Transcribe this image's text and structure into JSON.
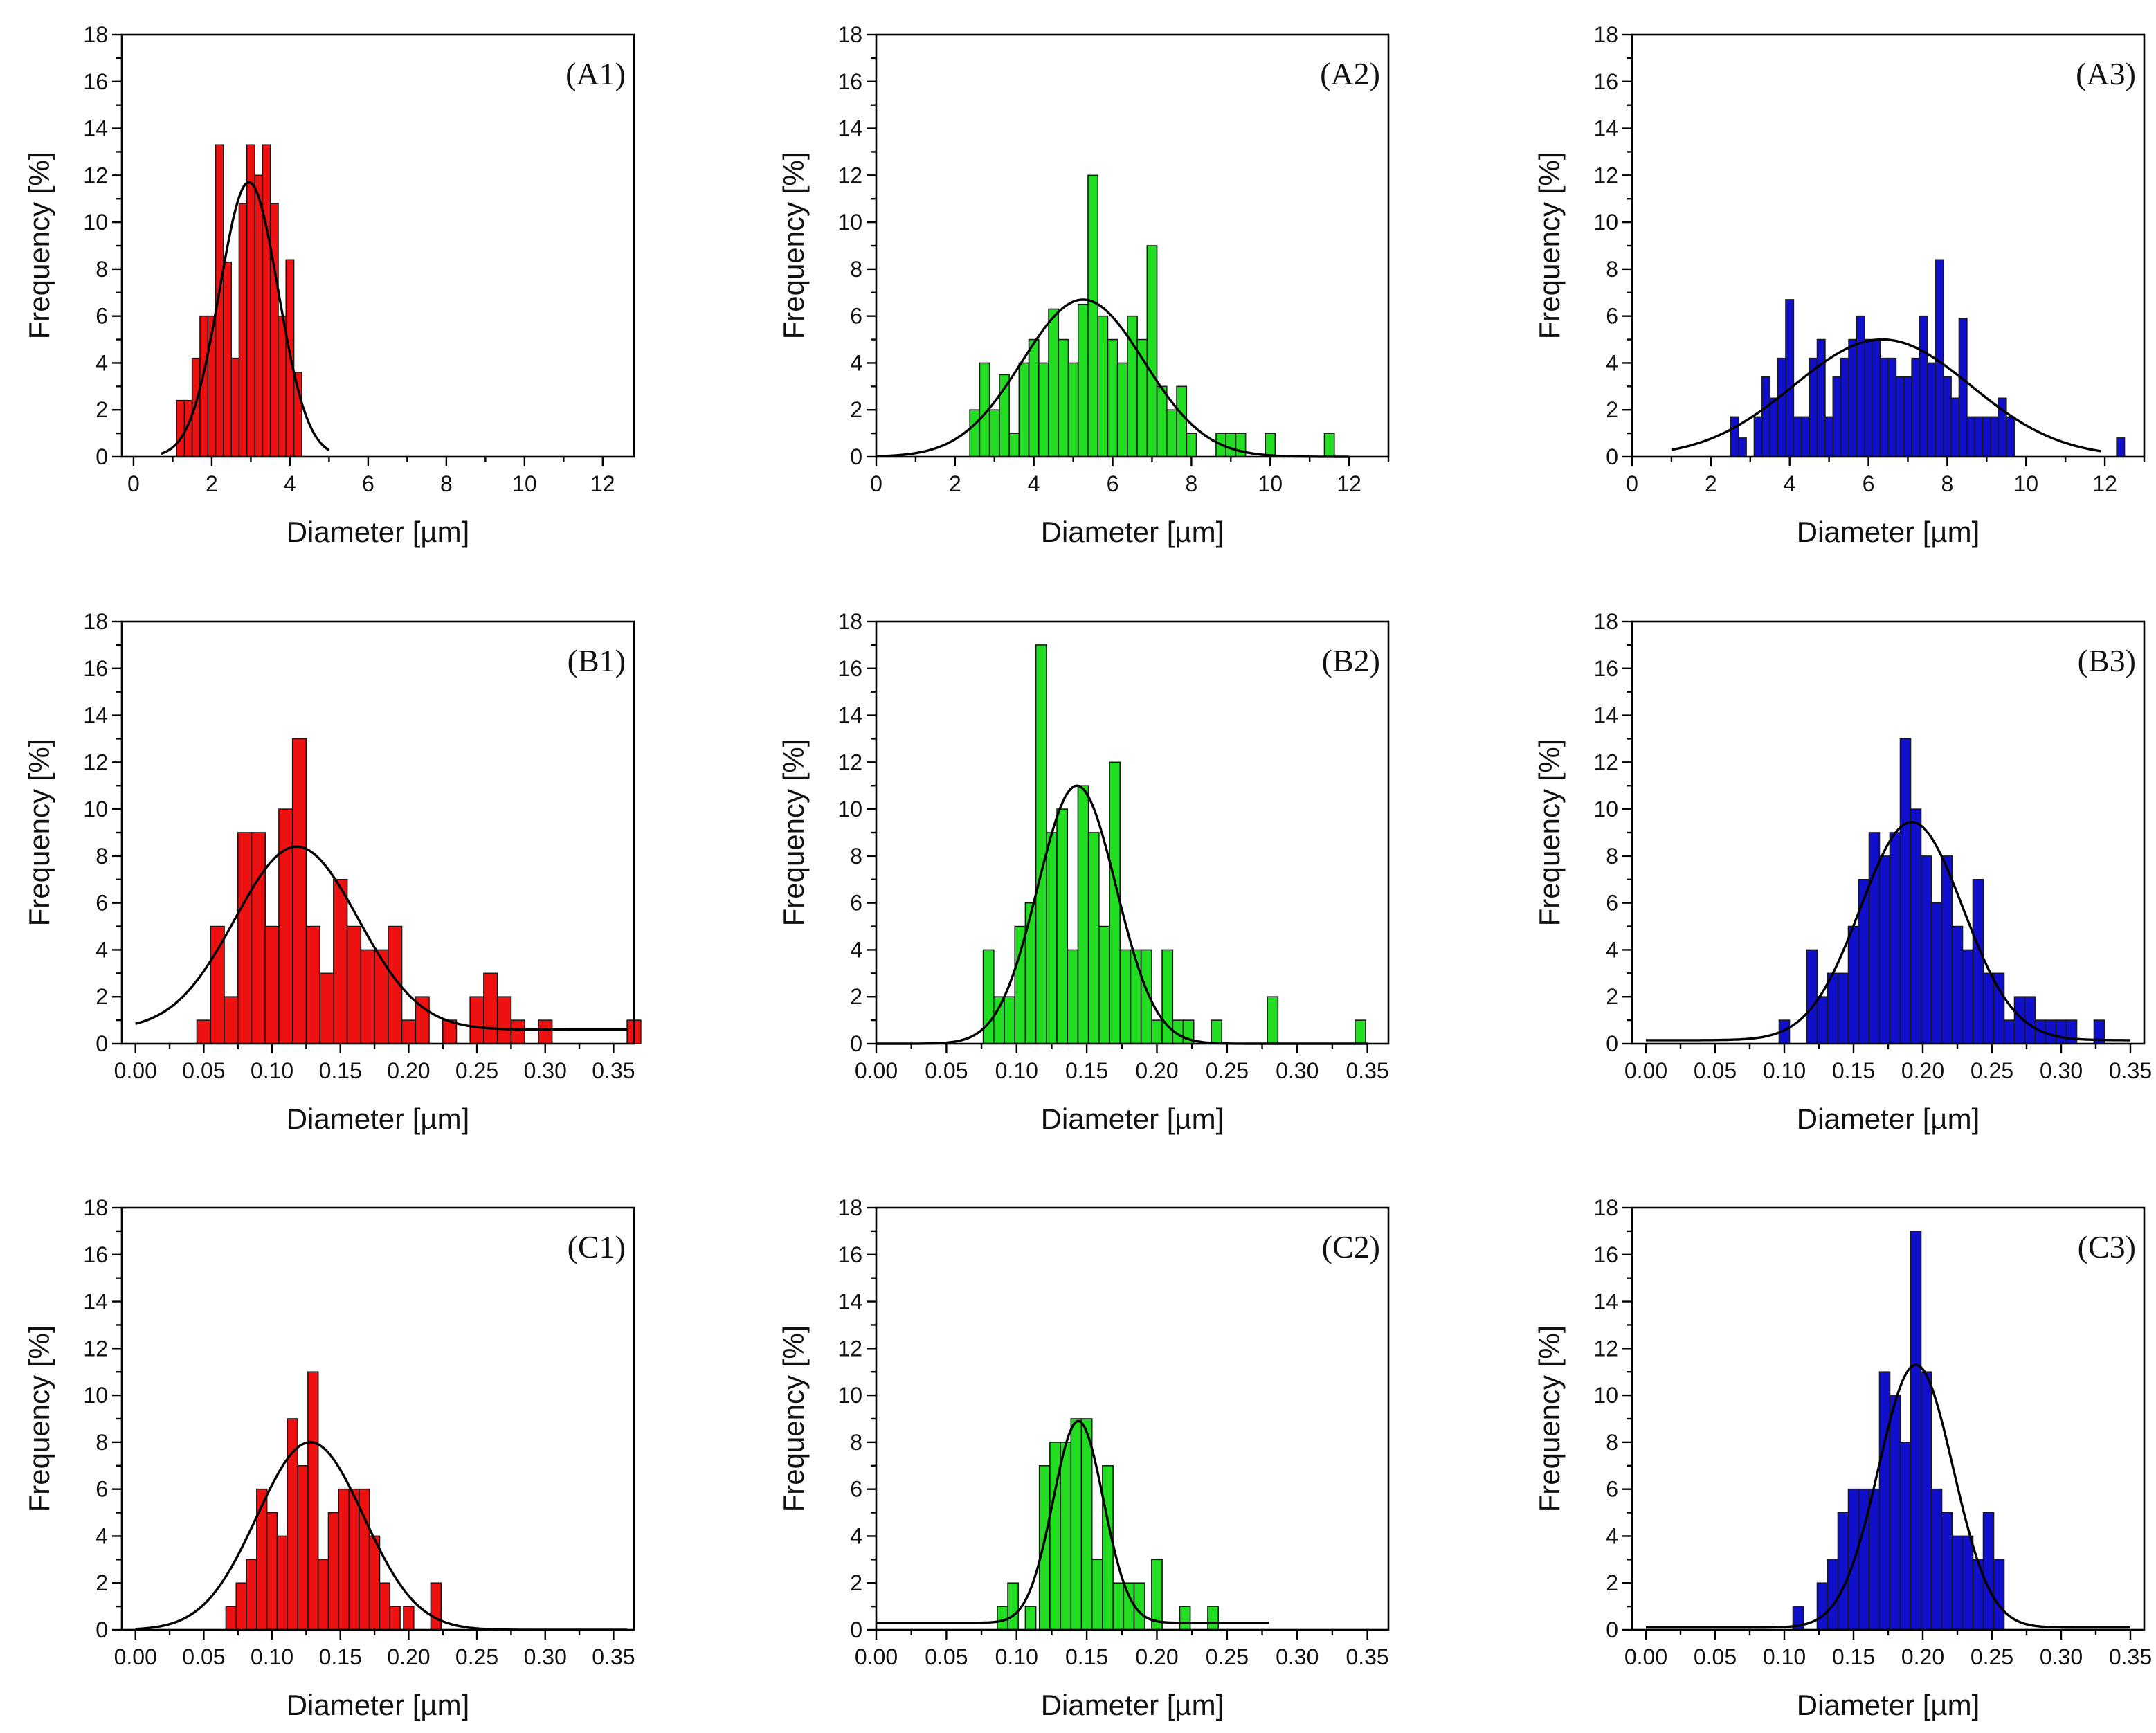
{
  "figure": {
    "colors": {
      "red": "#ee1111",
      "green": "#22dd22",
      "blue": "#1010cc"
    }
  },
  "chart_data": [
    {
      "id": "A1",
      "type": "bar",
      "title": "(A1)",
      "color": "#ee1111",
      "xlabel": "Diameter [µm]",
      "ylabel": "Frequency [%]",
      "xlim": [
        -0.3,
        12.8
      ],
      "xticks": [
        0,
        2,
        4,
        6,
        8,
        10,
        12
      ],
      "xtick_labels": [
        "0",
        "2",
        "4",
        "6",
        "8",
        "10",
        "12"
      ],
      "ylim": [
        0,
        18
      ],
      "yticks": [
        0,
        2,
        4,
        6,
        8,
        10,
        12,
        14,
        16,
        18
      ],
      "bin_width": 0.2,
      "bins": [
        [
          1.2,
          2.4
        ],
        [
          1.4,
          2.4
        ],
        [
          1.6,
          4.2
        ],
        [
          1.8,
          6
        ],
        [
          2.0,
          6
        ],
        [
          2.2,
          13.3
        ],
        [
          2.4,
          8.3
        ],
        [
          2.6,
          4.2
        ],
        [
          2.8,
          10.8
        ],
        [
          3.0,
          13.3
        ],
        [
          3.2,
          12
        ],
        [
          3.4,
          13.3
        ],
        [
          3.6,
          10.8
        ],
        [
          3.8,
          6
        ],
        [
          4.0,
          8.4
        ],
        [
          4.2,
          3.6
        ]
      ],
      "fit": {
        "mean": 2.95,
        "sd": 0.75,
        "amp": 11.7,
        "xmin": 0.7,
        "xmax": 5.0
      }
    },
    {
      "id": "A2",
      "type": "bar",
      "title": "(A2)",
      "color": "#22dd22",
      "xlabel": "Diameter [µm]",
      "ylabel": "Frequency [%]",
      "xlim": [
        0,
        13
      ],
      "xticks": [
        0,
        2,
        4,
        6,
        8,
        10,
        12
      ],
      "xtick_labels": [
        "0",
        "2",
        "4",
        "6",
        "8",
        "10",
        "12"
      ],
      "ylim": [
        0,
        18
      ],
      "yticks": [
        0,
        2,
        4,
        6,
        8,
        10,
        12,
        14,
        16,
        18
      ],
      "bin_width": 0.25,
      "bins": [
        [
          2.5,
          2
        ],
        [
          2.75,
          4
        ],
        [
          3.0,
          2
        ],
        [
          3.25,
          3.5
        ],
        [
          3.5,
          1
        ],
        [
          3.75,
          4
        ],
        [
          4.0,
          5
        ],
        [
          4.25,
          4
        ],
        [
          4.5,
          6.3
        ],
        [
          4.75,
          5
        ],
        [
          5.0,
          4
        ],
        [
          5.25,
          6.5
        ],
        [
          5.5,
          12
        ],
        [
          5.75,
          6
        ],
        [
          6.0,
          5
        ],
        [
          6.25,
          4
        ],
        [
          6.5,
          6
        ],
        [
          6.75,
          5
        ],
        [
          7.0,
          9
        ],
        [
          7.25,
          3
        ],
        [
          7.5,
          2
        ],
        [
          7.75,
          3
        ],
        [
          8.0,
          1
        ],
        [
          8.75,
          1
        ],
        [
          9.0,
          1
        ],
        [
          9.25,
          1
        ],
        [
          10.0,
          1
        ],
        [
          11.5,
          1
        ]
      ],
      "fit": {
        "mean": 5.25,
        "sd": 1.55,
        "amp": 6.7,
        "xmin": 0,
        "xmax": 12.0
      }
    },
    {
      "id": "A3",
      "type": "bar",
      "title": "(A3)",
      "color": "#1010cc",
      "xlabel": "Diameter [µm]",
      "ylabel": "Frequency [%]",
      "xlim": [
        0,
        13
      ],
      "xticks": [
        0,
        2,
        4,
        6,
        8,
        10,
        12
      ],
      "xtick_labels": [
        "0",
        "2",
        "4",
        "6",
        "8",
        "10",
        "12"
      ],
      "ylim": [
        0,
        18
      ],
      "yticks": [
        0,
        2,
        4,
        6,
        8,
        10,
        12,
        14,
        16,
        18
      ],
      "bin_width": 0.2,
      "bins": [
        [
          2.6,
          1.7
        ],
        [
          2.8,
          0.8
        ],
        [
          3.2,
          1.7
        ],
        [
          3.4,
          3.4
        ],
        [
          3.6,
          2.5
        ],
        [
          3.8,
          4.2
        ],
        [
          4.0,
          6.7
        ],
        [
          4.2,
          1.7
        ],
        [
          4.4,
          1.7
        ],
        [
          4.6,
          4.2
        ],
        [
          4.8,
          5
        ],
        [
          5.0,
          1.7
        ],
        [
          5.2,
          3.4
        ],
        [
          5.4,
          4.2
        ],
        [
          5.6,
          5
        ],
        [
          5.8,
          6
        ],
        [
          6.0,
          5
        ],
        [
          6.2,
          5
        ],
        [
          6.4,
          4.2
        ],
        [
          6.6,
          4.2
        ],
        [
          6.8,
          3.4
        ],
        [
          7.0,
          3.4
        ],
        [
          7.2,
          4.2
        ],
        [
          7.4,
          6
        ],
        [
          7.6,
          4
        ],
        [
          7.8,
          8.4
        ],
        [
          8.0,
          3.4
        ],
        [
          8.2,
          2.5
        ],
        [
          8.4,
          5.9
        ],
        [
          8.6,
          1.7
        ],
        [
          8.8,
          1.7
        ],
        [
          9.0,
          1.7
        ],
        [
          9.2,
          1.7
        ],
        [
          9.4,
          2.5
        ],
        [
          9.6,
          1.7
        ],
        [
          12.4,
          0.8
        ]
      ],
      "fit": {
        "mean": 6.35,
        "sd": 2.25,
        "amp": 5.0,
        "xmin": 1.0,
        "xmax": 11.9
      }
    },
    {
      "id": "B1",
      "type": "bar",
      "title": "(B1)",
      "color": "#ee1111",
      "xlabel": "Diameter [µm]",
      "ylabel": "Frequency [%]",
      "xlim": [
        -0.01,
        0.365
      ],
      "xticks": [
        0,
        0.05,
        0.1,
        0.15,
        0.2,
        0.25,
        0.3,
        0.35
      ],
      "xtick_labels": [
        "0.00",
        "0.05",
        "0.10",
        "0.15",
        "0.20",
        "0.25",
        "0.30",
        "0.35"
      ],
      "ylim": [
        0,
        18
      ],
      "yticks": [
        0,
        2,
        4,
        6,
        8,
        10,
        12,
        14,
        16,
        18
      ],
      "bin_width": 0.01,
      "bins": [
        [
          0.05,
          1
        ],
        [
          0.06,
          5
        ],
        [
          0.07,
          2
        ],
        [
          0.08,
          9
        ],
        [
          0.09,
          9
        ],
        [
          0.1,
          5
        ],
        [
          0.11,
          10
        ],
        [
          0.12,
          13
        ],
        [
          0.13,
          5
        ],
        [
          0.14,
          3
        ],
        [
          0.15,
          7
        ],
        [
          0.16,
          5
        ],
        [
          0.17,
          4
        ],
        [
          0.18,
          4
        ],
        [
          0.19,
          5
        ],
        [
          0.2,
          1
        ],
        [
          0.21,
          2
        ],
        [
          0.23,
          1
        ],
        [
          0.25,
          2
        ],
        [
          0.26,
          3
        ],
        [
          0.27,
          2
        ],
        [
          0.28,
          1
        ],
        [
          0.3,
          1
        ],
        [
          0.365,
          1
        ]
      ],
      "fit": {
        "mean": 0.118,
        "sd": 0.045,
        "amp": 7.8,
        "offset": 0.6,
        "xmin": 0,
        "xmax": 0.36
      }
    },
    {
      "id": "B2",
      "type": "bar",
      "title": "(B2)",
      "color": "#22dd22",
      "xlabel": "Diameter [µm]",
      "ylabel": "Frequency [%]",
      "xlim": [
        0,
        0.365
      ],
      "xticks": [
        0,
        0.05,
        0.1,
        0.15,
        0.2,
        0.25,
        0.3,
        0.35
      ],
      "xtick_labels": [
        "0.00",
        "0.05",
        "0.10",
        "0.15",
        "0.20",
        "0.25",
        "0.30",
        "0.35"
      ],
      "ylim": [
        0,
        18
      ],
      "yticks": [
        0,
        2,
        4,
        6,
        8,
        10,
        12,
        14,
        16,
        18
      ],
      "bin_width": 0.0075,
      "bins": [
        [
          0.08,
          4
        ],
        [
          0.0875,
          2
        ],
        [
          0.095,
          2
        ],
        [
          0.1025,
          5
        ],
        [
          0.11,
          6
        ],
        [
          0.1175,
          17
        ],
        [
          0.125,
          9
        ],
        [
          0.1325,
          10
        ],
        [
          0.14,
          4
        ],
        [
          0.1475,
          11
        ],
        [
          0.155,
          9
        ],
        [
          0.1625,
          5
        ],
        [
          0.17,
          12
        ],
        [
          0.1775,
          4
        ],
        [
          0.185,
          4
        ],
        [
          0.1925,
          4
        ],
        [
          0.2,
          1
        ],
        [
          0.2075,
          4
        ],
        [
          0.215,
          1
        ],
        [
          0.2225,
          1
        ],
        [
          0.2425,
          1
        ],
        [
          0.2825,
          2
        ],
        [
          0.345,
          1
        ]
      ],
      "fit": {
        "mean": 0.143,
        "sd": 0.028,
        "amp": 11.0,
        "xmin": 0,
        "xmax": 0.35
      }
    },
    {
      "id": "B3",
      "type": "bar",
      "title": "(B3)",
      "color": "#1010cc",
      "xlabel": "Diameter [µm]",
      "ylabel": "Frequency [%]",
      "xlim": [
        -0.01,
        0.36
      ],
      "xticks": [
        0,
        0.05,
        0.1,
        0.15,
        0.2,
        0.25,
        0.3,
        0.35
      ],
      "xtick_labels": [
        "0.00",
        "0.05",
        "0.10",
        "0.15",
        "0.20",
        "0.25",
        "0.30",
        "0.35"
      ],
      "ylim": [
        0,
        18
      ],
      "yticks": [
        0,
        2,
        4,
        6,
        8,
        10,
        12,
        14,
        16,
        18
      ],
      "bin_width": 0.0075,
      "bins": [
        [
          0.1,
          1
        ],
        [
          0.12,
          4
        ],
        [
          0.1275,
          2
        ],
        [
          0.135,
          3
        ],
        [
          0.1425,
          3
        ],
        [
          0.15,
          5
        ],
        [
          0.1575,
          7
        ],
        [
          0.165,
          9
        ],
        [
          0.1725,
          8
        ],
        [
          0.18,
          9
        ],
        [
          0.1875,
          13
        ],
        [
          0.195,
          10
        ],
        [
          0.2025,
          8
        ],
        [
          0.21,
          6
        ],
        [
          0.2175,
          8
        ],
        [
          0.225,
          5
        ],
        [
          0.2325,
          4
        ],
        [
          0.24,
          7
        ],
        [
          0.2475,
          3
        ],
        [
          0.255,
          3
        ],
        [
          0.2625,
          1
        ],
        [
          0.27,
          2
        ],
        [
          0.2775,
          2
        ],
        [
          0.285,
          1
        ],
        [
          0.2925,
          1
        ],
        [
          0.3,
          1
        ],
        [
          0.3075,
          1
        ],
        [
          0.3275,
          1
        ]
      ],
      "fit": {
        "mean": 0.192,
        "sd": 0.037,
        "amp": 9.3,
        "offset": 0.15,
        "xmin": 0,
        "xmax": 0.35
      }
    },
    {
      "id": "C1",
      "type": "bar",
      "title": "(C1)",
      "color": "#ee1111",
      "xlabel": "Diameter [µm]",
      "ylabel": "Frequency [%]",
      "xlim": [
        -0.01,
        0.365
      ],
      "xticks": [
        0,
        0.05,
        0.1,
        0.15,
        0.2,
        0.25,
        0.3,
        0.35
      ],
      "xtick_labels": [
        "0.00",
        "0.05",
        "0.10",
        "0.15",
        "0.20",
        "0.25",
        "0.30",
        "0.35"
      ],
      "ylim": [
        0,
        18
      ],
      "yticks": [
        0,
        2,
        4,
        6,
        8,
        10,
        12,
        14,
        16,
        18
      ],
      "bin_width": 0.0075,
      "bins": [
        [
          0.07,
          1
        ],
        [
          0.0775,
          2
        ],
        [
          0.085,
          3
        ],
        [
          0.0925,
          6
        ],
        [
          0.1,
          5
        ],
        [
          0.1075,
          4
        ],
        [
          0.115,
          9
        ],
        [
          0.1225,
          7
        ],
        [
          0.13,
          11
        ],
        [
          0.1375,
          3
        ],
        [
          0.145,
          5
        ],
        [
          0.1525,
          6
        ],
        [
          0.16,
          6
        ],
        [
          0.1675,
          6
        ],
        [
          0.175,
          4
        ],
        [
          0.1825,
          2
        ],
        [
          0.19,
          1
        ],
        [
          0.2,
          1
        ],
        [
          0.22,
          2
        ]
      ],
      "fit": {
        "mean": 0.128,
        "sd": 0.039,
        "amp": 8.0,
        "xmin": 0,
        "xmax": 0.36
      }
    },
    {
      "id": "C2",
      "type": "bar",
      "title": "(C2)",
      "color": "#22dd22",
      "xlabel": "Diameter [µm]",
      "ylabel": "Frequency [%]",
      "xlim": [
        0,
        0.365
      ],
      "xticks": [
        0,
        0.05,
        0.1,
        0.15,
        0.2,
        0.25,
        0.3,
        0.35
      ],
      "xtick_labels": [
        "0.00",
        "0.05",
        "0.10",
        "0.15",
        "0.20",
        "0.25",
        "0.30",
        "0.35"
      ],
      "ylim": [
        0,
        18
      ],
      "yticks": [
        0,
        2,
        4,
        6,
        8,
        10,
        12,
        14,
        16,
        18
      ],
      "bin_width": 0.0075,
      "bins": [
        [
          0.09,
          1
        ],
        [
          0.0975,
          2
        ],
        [
          0.11,
          1
        ],
        [
          0.12,
          7
        ],
        [
          0.1275,
          8
        ],
        [
          0.135,
          8
        ],
        [
          0.1425,
          9
        ],
        [
          0.15,
          9
        ],
        [
          0.1575,
          3
        ],
        [
          0.165,
          7
        ],
        [
          0.1725,
          2
        ],
        [
          0.18,
          2
        ],
        [
          0.1875,
          2
        ],
        [
          0.2,
          3
        ],
        [
          0.22,
          1
        ],
        [
          0.24,
          1
        ]
      ],
      "fit": {
        "mean": 0.144,
        "sd": 0.018,
        "amp": 8.6,
        "offset": 0.3,
        "xmin": 0,
        "xmax": 0.28
      }
    },
    {
      "id": "C3",
      "type": "bar",
      "title": "(C3)",
      "color": "#1010cc",
      "xlabel": "Diameter [µm]",
      "ylabel": "Frequency [%]",
      "xlim": [
        -0.01,
        0.36
      ],
      "xticks": [
        0,
        0.05,
        0.1,
        0.15,
        0.2,
        0.25,
        0.3,
        0.35
      ],
      "xtick_labels": [
        "0.00",
        "0.05",
        "0.10",
        "0.15",
        "0.20",
        "0.25",
        "0.30",
        "0.35"
      ],
      "ylim": [
        0,
        18
      ],
      "yticks": [
        0,
        2,
        4,
        6,
        8,
        10,
        12,
        14,
        16,
        18
      ],
      "bin_width": 0.0075,
      "bins": [
        [
          0.11,
          1
        ],
        [
          0.1275,
          2
        ],
        [
          0.135,
          3
        ],
        [
          0.1425,
          5
        ],
        [
          0.15,
          6
        ],
        [
          0.1575,
          6
        ],
        [
          0.165,
          6
        ],
        [
          0.1725,
          11
        ],
        [
          0.18,
          10
        ],
        [
          0.1875,
          8
        ],
        [
          0.195,
          17
        ],
        [
          0.2025,
          11
        ],
        [
          0.21,
          6
        ],
        [
          0.2175,
          5
        ],
        [
          0.225,
          4
        ],
        [
          0.2325,
          4
        ],
        [
          0.24,
          3
        ],
        [
          0.2475,
          5
        ],
        [
          0.255,
          3
        ]
      ],
      "fit": {
        "mean": 0.195,
        "sd": 0.027,
        "amp": 11.2,
        "offset": 0.1,
        "xmin": 0,
        "xmax": 0.35
      }
    }
  ]
}
